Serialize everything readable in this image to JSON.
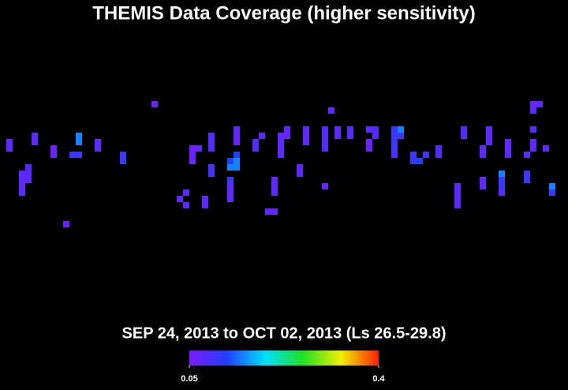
{
  "chart_data": {
    "type": "heatmap",
    "title": "THEMIS Data Coverage (higher sensitivity)",
    "subtitle": "SEP 24, 2013 to OCT 02, 2013 (Ls 26.5-29.8)",
    "colormap": [
      "#7a1cff",
      "#2040ff",
      "#00e0ff",
      "#20e020",
      "#f0f000",
      "#ff2000"
    ],
    "clim": [
      0.05,
      0.4
    ],
    "cticks": [
      0.05,
      0.4
    ],
    "x": [
      1,
      1,
      3,
      3,
      3,
      3,
      4,
      4,
      4,
      5,
      5,
      8,
      8,
      10,
      11,
      12,
      12,
      12,
      15,
      15,
      19,
      19,
      24,
      28,
      29,
      29,
      30,
      30,
      30,
      31,
      32,
      32,
      33,
      33,
      33,
      33,
      33,
      36,
      36,
      36,
      36,
      37,
      37,
      37,
      37,
      36,
      37,
      36,
      37,
      40,
      40,
      41,
      42,
      43,
      43,
      43,
      43,
      44,
      44,
      44,
      44,
      45,
      45,
      47,
      47,
      48,
      48,
      48,
      51,
      51,
      51,
      51,
      51,
      52,
      53,
      53,
      55,
      55,
      58,
      58,
      58,
      59,
      59,
      62,
      62,
      62,
      62,
      62,
      63,
      63,
      65,
      65,
      66,
      67,
      69,
      69,
      72,
      72,
      72,
      72,
      73,
      73,
      76,
      76,
      76,
      76,
      77,
      77,
      77,
      79,
      79,
      79,
      79,
      80,
      80,
      80,
      83,
      83,
      83,
      84,
      84,
      84,
      84,
      84,
      86,
      87,
      87,
      85
    ],
    "y": [
      22,
      23,
      27,
      28,
      29,
      30,
      26,
      27,
      28,
      21,
      22,
      23,
      24,
      35,
      24,
      24,
      21,
      22,
      22,
      23,
      24,
      25,
      16,
      31,
      30,
      32,
      23,
      24,
      25,
      23,
      31,
      32,
      21,
      22,
      23,
      26,
      27,
      28,
      29,
      30,
      31,
      20,
      21,
      22,
      24,
      25,
      25,
      26,
      26,
      22,
      23,
      21,
      33,
      33,
      28,
      29,
      30,
      21,
      22,
      23,
      24,
      20,
      21,
      26,
      27,
      20,
      21,
      22,
      29,
      20,
      21,
      22,
      23,
      17,
      20,
      21,
      20,
      21,
      20,
      22,
      23,
      20,
      21,
      20,
      21,
      22,
      23,
      24,
      20,
      21,
      24,
      25,
      25,
      24,
      23,
      24,
      29,
      30,
      31,
      32,
      20,
      21,
      28,
      29,
      23,
      24,
      20,
      21,
      22,
      27,
      28,
      29,
      30,
      22,
      23,
      24,
      27,
      28,
      24,
      16,
      17,
      20,
      22,
      23,
      23,
      29,
      30,
      16
    ],
    "values": [
      0.07,
      0.07,
      0.07,
      0.07,
      0.07,
      0.07,
      0.08,
      0.08,
      0.08,
      0.07,
      0.07,
      0.06,
      0.06,
      0.06,
      0.1,
      0.1,
      0.15,
      0.15,
      0.07,
      0.07,
      0.1,
      0.1,
      0.06,
      0.07,
      0.07,
      0.07,
      0.06,
      0.06,
      0.06,
      0.07,
      0.07,
      0.07,
      0.08,
      0.08,
      0.08,
      0.09,
      0.09,
      0.1,
      0.07,
      0.07,
      0.07,
      0.07,
      0.07,
      0.06,
      0.12,
      0.12,
      0.15,
      0.15,
      0.15,
      0.08,
      0.08,
      0.07,
      0.07,
      0.07,
      0.07,
      0.07,
      0.07,
      0.07,
      0.07,
      0.07,
      0.07,
      0.07,
      0.07,
      0.07,
      0.07,
      0.07,
      0.07,
      0.07,
      0.06,
      0.08,
      0.08,
      0.08,
      0.08,
      0.07,
      0.07,
      0.07,
      0.08,
      0.08,
      0.07,
      0.06,
      0.06,
      0.08,
      0.08,
      0.1,
      0.1,
      0.1,
      0.1,
      0.08,
      0.15,
      0.1,
      0.1,
      0.1,
      0.12,
      0.1,
      0.08,
      0.08,
      0.07,
      0.07,
      0.07,
      0.07,
      0.08,
      0.08,
      0.07,
      0.07,
      0.07,
      0.07,
      0.07,
      0.07,
      0.07,
      0.15,
      0.1,
      0.1,
      0.07,
      0.07,
      0.07,
      0.07,
      0.1,
      0.1,
      0.07,
      0.07,
      0.07,
      0.07,
      0.07,
      0.07,
      0.07,
      0.15,
      0.1,
      0.07
    ]
  }
}
